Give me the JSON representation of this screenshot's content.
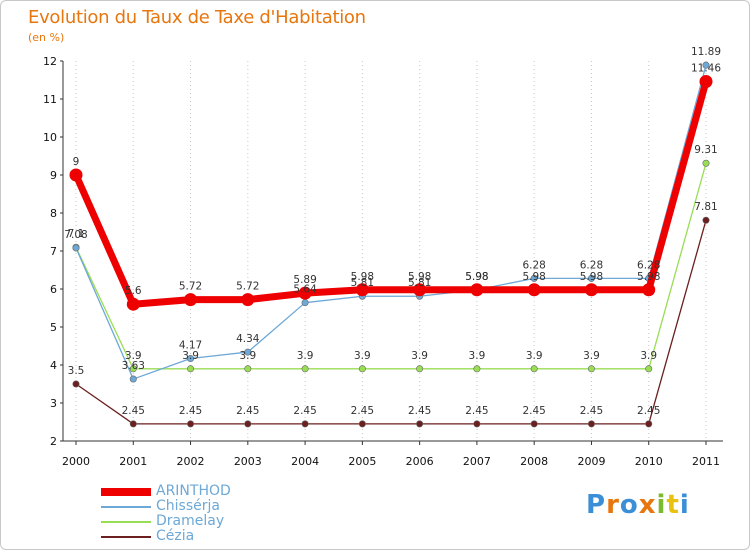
{
  "chart_data": {
    "type": "line",
    "title": "Evolution du Taux de Taxe d'Habitation",
    "subtitle": "(en %)",
    "x": [
      "2000",
      "2001",
      "2002",
      "2003",
      "2004",
      "2005",
      "2006",
      "2007",
      "2008",
      "2009",
      "2010",
      "2011"
    ],
    "ylim": [
      2,
      12
    ],
    "yticks": [
      2,
      3,
      4,
      5,
      6,
      7,
      8,
      9,
      10,
      11,
      12
    ],
    "grid": "vertical dotted",
    "legend_position": "bottom-left",
    "series": [
      {
        "name": "ARINTHOD",
        "color": "#ee0000",
        "values": [
          9,
          5.6,
          5.72,
          5.72,
          5.89,
          5.98,
          5.98,
          5.98,
          5.98,
          5.98,
          5.98,
          11.46
        ],
        "labels": [
          "9",
          "5.6",
          "5.72",
          "5.72",
          "5.89",
          "5.98",
          "5.98",
          "5.98",
          "5.98",
          "5.98",
          "5.98",
          "11.46"
        ]
      },
      {
        "name": "Chissérja",
        "color": "#6da8d6",
        "values": [
          7.08,
          3.63,
          4.17,
          4.34,
          5.64,
          5.81,
          5.81,
          5.98,
          6.28,
          6.28,
          6.28,
          11.89
        ],
        "labels": [
          "7.08",
          "3.63",
          "4.17",
          "4.34",
          "5.64",
          "5.81",
          "5.81",
          "5.98",
          "6.28",
          "6.28",
          "6.28",
          "11.89"
        ]
      },
      {
        "name": "Dramelay",
        "color": "#99dd55",
        "values": [
          7.1,
          3.9,
          3.9,
          3.9,
          3.9,
          3.9,
          3.9,
          3.9,
          3.9,
          3.9,
          3.9,
          9.31
        ],
        "labels": [
          "7.1",
          "3.9",
          "3.9",
          "3.9",
          "3.9",
          "3.9",
          "3.9",
          "3.9",
          "3.9",
          "3.9",
          "3.9",
          "9.31"
        ]
      },
      {
        "name": "Cézia",
        "color": "#6b1f1f",
        "values": [
          3.5,
          2.45,
          2.45,
          2.45,
          2.45,
          2.45,
          2.45,
          2.45,
          2.45,
          2.45,
          2.45,
          7.81
        ],
        "labels": [
          "3.5",
          "2.45",
          "2.45",
          "2.45",
          "2.45",
          "2.45",
          "2.45",
          "2.45",
          "2.45",
          "2.45",
          "2.45",
          "7.81"
        ]
      }
    ]
  },
  "branding": {
    "logo_letters": [
      "P",
      "r",
      "o",
      "x",
      "i",
      "t",
      "i"
    ],
    "logo_colors": [
      "#3b8fd6",
      "#e8760e",
      "#3b8fd6",
      "#e8760e",
      "#7bbb2f",
      "#e8c20e",
      "#3b8fd6"
    ]
  }
}
